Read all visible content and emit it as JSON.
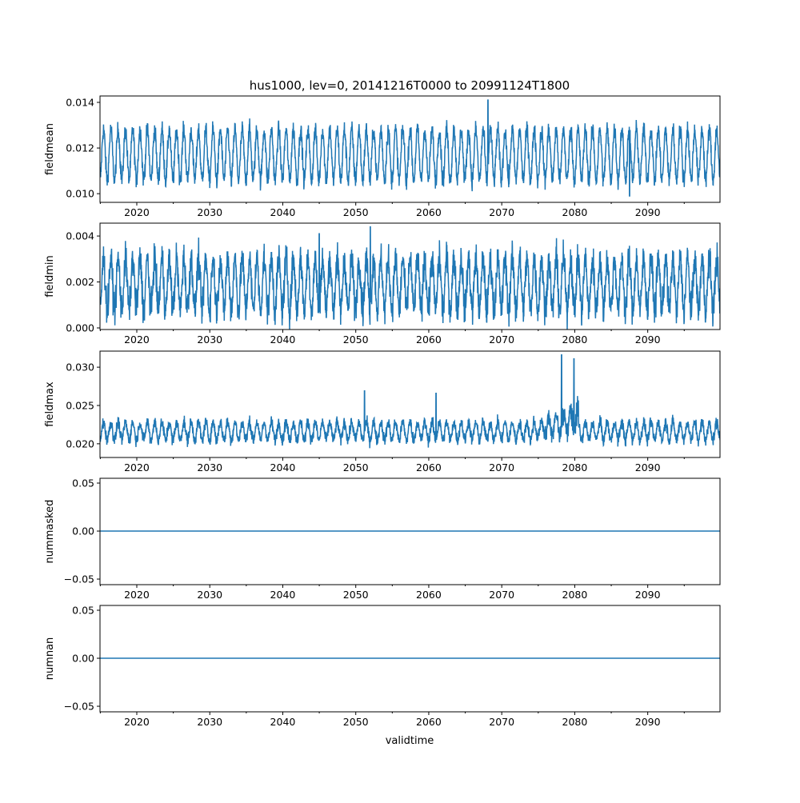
{
  "chart_data": {
    "type": "line",
    "title": "hus1000, lev=0, 20141216T0000 to 20991124T1800",
    "xlabel": "validtime",
    "xlim": [
      2014.96,
      2099.9
    ],
    "xticks": [
      2020,
      2030,
      2040,
      2050,
      2060,
      2070,
      2080,
      2090
    ],
    "xtick_labels": [
      "2020",
      "2030",
      "2040",
      "2050",
      "2060",
      "2070",
      "2080",
      "2090"
    ],
    "line_color": "#1f77b4",
    "grid": false,
    "panels": [
      {
        "ylabel": "fieldmean",
        "ylim": [
          0.00962,
          0.01428
        ],
        "yticks": [
          0.01,
          0.012,
          0.014
        ],
        "ytick_labels": [
          "0.010",
          "0.012",
          "0.014"
        ],
        "seasonal_low": 0.0106,
        "seasonal_high": 0.0128,
        "noise": 0.0004,
        "peaks": [
          {
            "x": 2068.1,
            "y": 0.0141
          },
          {
            "x": 2087.5,
            "y": 0.0099
          }
        ]
      },
      {
        "ylabel": "fieldmin",
        "ylim": [
          -7e-05,
          0.00456
        ],
        "yticks": [
          0.0,
          0.002,
          0.004
        ],
        "ytick_labels": [
          "0.000",
          "0.002",
          "0.004"
        ],
        "seasonal_low": 0.0008,
        "seasonal_high": 0.003,
        "noise": 0.0007,
        "peaks": [
          {
            "x": 2052.0,
            "y": 0.0044
          },
          {
            "x": 2045.0,
            "y": 0.0041
          }
        ]
      },
      {
        "ylabel": "fieldmax",
        "ylim": [
          0.01821,
          0.0321
        ],
        "yticks": [
          0.02,
          0.025,
          0.03
        ],
        "ytick_labels": [
          "0.020",
          "0.025",
          "0.030"
        ],
        "seasonal_low": 0.0205,
        "seasonal_high": 0.0228,
        "noise": 0.0008,
        "peaks": [
          {
            "x": 2051.2,
            "y": 0.0269
          },
          {
            "x": 2061.0,
            "y": 0.0266
          },
          {
            "x": 2078.2,
            "y": 0.0316
          },
          {
            "x": 2079.9,
            "y": 0.0311
          }
        ]
      },
      {
        "ylabel": "nummasked",
        "ylim": [
          -0.0558,
          0.055
        ],
        "yticks": [
          -0.05,
          0.0,
          0.05
        ],
        "ytick_labels": [
          "−0.05",
          "0.00",
          "0.05"
        ],
        "constant": 0.0
      },
      {
        "ylabel": "numnan",
        "ylim": [
          -0.0558,
          0.055
        ],
        "yticks": [
          -0.05,
          0.0,
          0.05
        ],
        "ytick_labels": [
          "−0.05",
          "0.00",
          "0.05"
        ],
        "constant": 0.0
      }
    ]
  }
}
